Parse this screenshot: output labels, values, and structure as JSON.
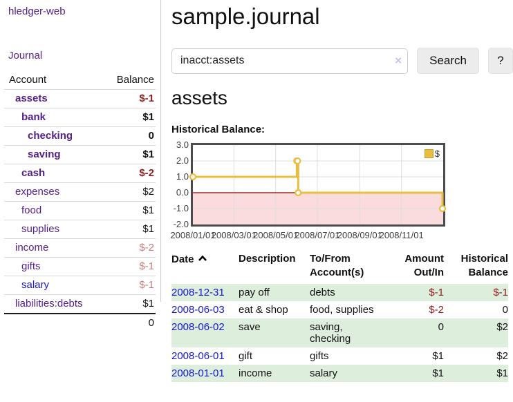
{
  "colors": {
    "link_purple": "#531f8a",
    "link_blue": "#1616c9",
    "negative_strong": "#8f1d1d",
    "negative_soft": "#c47e7e",
    "row_green": "#ddeedd",
    "series_gold": "#e9bd40",
    "chart_negative_region": "#fbdcdc",
    "chart_zero_line": "#8b0000"
  },
  "sidebar": {
    "brand": "hledger-web",
    "nav": {
      "journal": "Journal"
    },
    "accounts_table": {
      "col_account": "Account",
      "col_balance": "Balance",
      "rows": [
        {
          "name": "assets",
          "balance": "$-1"
        },
        {
          "name": "bank",
          "balance": "$1"
        },
        {
          "name": "checking",
          "balance": "0"
        },
        {
          "name": "saving",
          "balance": "$1"
        },
        {
          "name": "cash",
          "balance": "$-2"
        },
        {
          "name": "expenses",
          "balance": "$2"
        },
        {
          "name": "food",
          "balance": "$1"
        },
        {
          "name": "supplies",
          "balance": "$1"
        },
        {
          "name": "income",
          "balance": "$-2"
        },
        {
          "name": "gifts",
          "balance": "$-1"
        },
        {
          "name": "salary",
          "balance": "$-1"
        },
        {
          "name": "liabilities:debts",
          "balance": "$1"
        }
      ],
      "total": "0"
    }
  },
  "main": {
    "title": "sample.journal",
    "search": {
      "query": "inacct:assets",
      "clear_icon": "×",
      "button": "Search",
      "help": "?"
    },
    "account_heading": "assets",
    "chart_heading": "Historical Balance:"
  },
  "chart_data": {
    "type": "line",
    "title": "Historical Balance",
    "step": true,
    "series": [
      {
        "name": "$",
        "color": "#e9bd40",
        "points": [
          [
            "2008-01-01",
            1
          ],
          [
            "2008-06-01",
            2
          ],
          [
            "2008-06-02",
            2
          ],
          [
            "2008-06-03",
            0
          ],
          [
            "2008-12-31",
            -1
          ]
        ]
      }
    ],
    "xlim": [
      "2008-01-01",
      "2009-01-01"
    ],
    "ylim": [
      -2,
      3
    ],
    "x_ticks": [
      "2008/01/01",
      "2008/03/01",
      "2008/05/01",
      "2008/07/01",
      "2008/09/01",
      "2008/11/01"
    ],
    "y_ticks": [
      "3.0",
      "2.0",
      "1.0",
      "0.0",
      "-1.0",
      "-2.0"
    ],
    "grid": true,
    "legend_position": "top-right",
    "legend": "$",
    "negative_region_color": "#fbdcdc",
    "zero_line_color": "#8b0000"
  },
  "register": {
    "headers": {
      "date": "Date",
      "description": "Description",
      "tofrom_line1": "To/From",
      "tofrom_line2": "Account(s)",
      "amount_line1": "Amount",
      "amount_line2": "Out/In",
      "balance_line1": "Historical",
      "balance_line2": "Balance"
    },
    "rows": [
      {
        "date": "2008-12-31",
        "description": "pay off",
        "accounts": "debts",
        "amount": "$-1",
        "balance": "$-1"
      },
      {
        "date": "2008-06-03",
        "description": "eat & shop",
        "accounts": "food, supplies",
        "amount": "$-2",
        "balance": "0"
      },
      {
        "date": "2008-06-02",
        "description": "save",
        "accounts": "saving,\nchecking",
        "amount": "0",
        "balance": "$2"
      },
      {
        "date": "2008-06-01",
        "description": "gift",
        "accounts": "gifts",
        "amount": "$1",
        "balance": "$2"
      },
      {
        "date": "2008-01-01",
        "description": "income",
        "accounts": "salary",
        "amount": "$1",
        "balance": "$1"
      }
    ]
  }
}
